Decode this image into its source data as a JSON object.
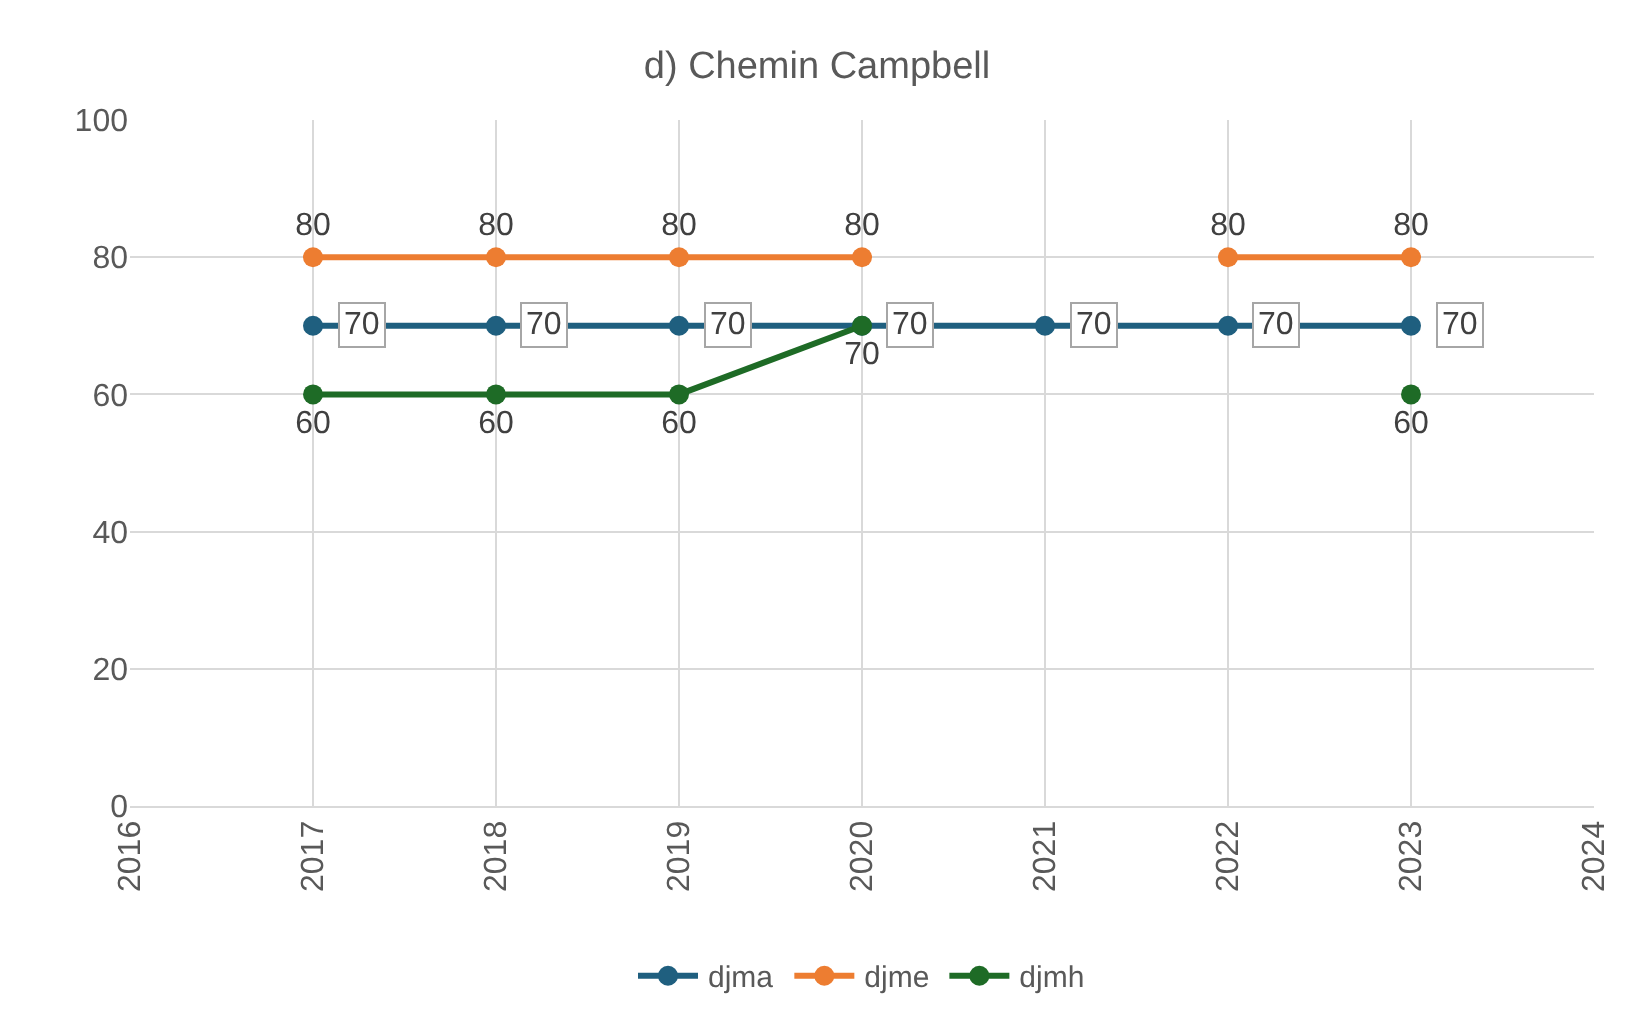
{
  "chart_data": {
    "type": "line",
    "title": "d) Chemin Campbell",
    "x": [
      2017,
      2018,
      2019,
      2020,
      2021,
      2022,
      2023
    ],
    "series": [
      {
        "name": "djma",
        "color": "#1f5f7f",
        "values": [
          70,
          70,
          70,
          70,
          70,
          70,
          70
        ]
      },
      {
        "name": "djme",
        "color": "#ed7d31",
        "values": [
          80,
          80,
          80,
          80,
          null,
          80,
          80
        ]
      },
      {
        "name": "djmh",
        "color": "#1e6b26",
        "values": [
          60,
          60,
          60,
          70,
          null,
          null,
          60
        ]
      }
    ],
    "xlim": [
      2016,
      2024
    ],
    "xticks": [
      2016,
      2017,
      2018,
      2019,
      2020,
      2021,
      2022,
      2023,
      2024
    ],
    "ylim": [
      0,
      100
    ],
    "yticks": [
      0,
      20,
      40,
      60,
      80,
      100
    ],
    "grid": true,
    "legend": "bottom",
    "marker": "circle",
    "line_style": "solid",
    "data_labels": true
  }
}
